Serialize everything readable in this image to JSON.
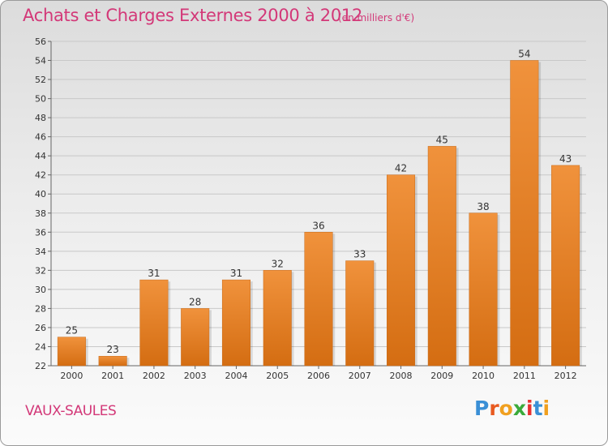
{
  "title": "Achats et Charges Externes 2000 à 2012",
  "subtitle": "(en milliers d'€)",
  "place": "VAUX-SAULES",
  "logo": {
    "letters": [
      "P",
      "r",
      "o",
      "x",
      "i",
      "t",
      "i"
    ],
    "colors": [
      "#3a8fd6",
      "#e85a20",
      "#f0a020",
      "#3aaa3a",
      "#e83030",
      "#3a8fd6",
      "#f0a020"
    ]
  },
  "colors": {
    "bar": "#f0923c",
    "bar_dark": "#d46d12",
    "accent": "#d33878",
    "grid": "#c8c8c8"
  },
  "chart_data": {
    "type": "bar",
    "categories": [
      "2000",
      "2001",
      "2002",
      "2003",
      "2004",
      "2005",
      "2006",
      "2007",
      "2008",
      "2009",
      "2010",
      "2011",
      "2012"
    ],
    "values": [
      25,
      23,
      31,
      28,
      31,
      32,
      36,
      33,
      42,
      45,
      38,
      54,
      43
    ],
    "ylim": [
      22,
      56
    ],
    "yticks": [
      22,
      24,
      26,
      28,
      30,
      32,
      34,
      36,
      38,
      40,
      42,
      44,
      46,
      48,
      50,
      52,
      54,
      56
    ],
    "grid": true,
    "data_labels": true
  }
}
